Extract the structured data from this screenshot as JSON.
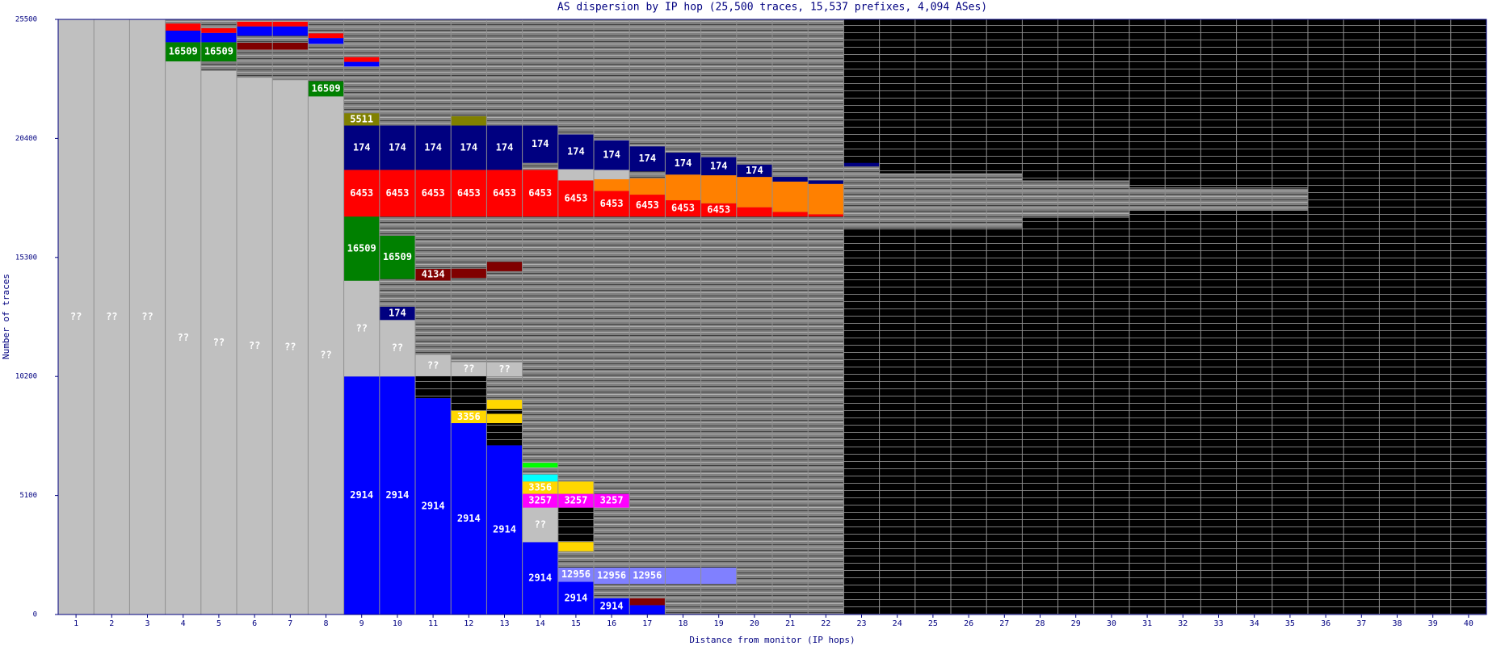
{
  "chart_data": {
    "type": "stacked-bar",
    "title": "AS dispersion by IP hop (25,500 traces, 15,537 prefixes, 4,094 ASes)",
    "x_label": "Distance from monitor (IP hops)",
    "y_label": "Number of traces",
    "ylim": [
      0,
      25500
    ],
    "yticks": [
      0,
      5100,
      10200,
      15300,
      20400,
      25500
    ],
    "categories": [
      "1",
      "2",
      "3",
      "4",
      "5",
      "6",
      "7",
      "8",
      "9",
      "10",
      "11",
      "12",
      "13",
      "14",
      "15",
      "16",
      "17",
      "18",
      "19",
      "20",
      "21",
      "22",
      "23",
      "24",
      "25",
      "26",
      "27",
      "28",
      "29",
      "30",
      "31",
      "32",
      "33",
      "34",
      "35",
      "36",
      "37",
      "38",
      "39",
      "40"
    ],
    "stacks": [
      [
        {
          "label": "??",
          "color": "#c0c0c0",
          "value": 25500
        }
      ],
      [
        {
          "label": "??",
          "color": "#c0c0c0",
          "value": 25500
        }
      ],
      [
        {
          "label": "??",
          "color": "#c0c0c0",
          "value": 25500
        }
      ],
      [
        {
          "label": "??",
          "color": "#c0c0c0",
          "value": 23700
        },
        {
          "label": "16509",
          "color": "#008000",
          "value": 820
        },
        {
          "color": "#0000ff",
          "value": 500
        },
        {
          "color": "#ff0000",
          "value": 300
        }
      ],
      [
        {
          "label": "??",
          "color": "#c0c0c0",
          "value": 23300
        },
        {
          "color": "#808080",
          "value": 400
        },
        {
          "label": "16509",
          "color": "#008000",
          "value": 820
        },
        {
          "color": "#0000ff",
          "value": 400
        },
        {
          "color": "#ff0000",
          "value": 200
        }
      ],
      [
        {
          "label": "??",
          "color": "#c0c0c0",
          "value": 23000
        },
        {
          "color": "#808080",
          "value": 1200
        },
        {
          "color": "#800000",
          "value": 300
        },
        {
          "color": "#808080",
          "value": 300
        },
        {
          "color": "#0000ff",
          "value": 400
        },
        {
          "color": "#ff0000",
          "value": 200
        }
      ],
      [
        {
          "label": "??",
          "color": "#c0c0c0",
          "value": 22900
        },
        {
          "color": "#808080",
          "value": 1300
        },
        {
          "color": "#800000",
          "value": 300
        },
        {
          "color": "#808080",
          "value": 300
        },
        {
          "color": "#0000ff",
          "value": 400
        },
        {
          "color": "#ff0000",
          "value": 200
        }
      ],
      [
        {
          "label": "??",
          "color": "#c0c0c0",
          "value": 22200
        },
        {
          "label": "16509",
          "color": "#008000",
          "value": 650
        },
        {
          "color": "#808080",
          "value": 1600
        },
        {
          "color": "#0000ff",
          "value": 250
        },
        {
          "color": "#ff0000",
          "value": 200
        }
      ],
      [
        {
          "label": "2914",
          "color": "#0000ff",
          "value": 10200
        },
        {
          "label": "??",
          "color": "#c0c0c0",
          "value": 4100
        },
        {
          "label": "16509",
          "color": "#008000",
          "value": 2750
        },
        {
          "label": "6453",
          "color": "#ff0000",
          "value": 2000
        },
        {
          "label": "174",
          "color": "#000080",
          "value": 1900
        },
        {
          "label": "5511",
          "color": "#808000",
          "value": 530
        },
        {
          "color": "#808080",
          "value": 2000
        },
        {
          "color": "#0000ff",
          "value": 200
        },
        {
          "color": "#ff0000",
          "value": 200
        }
      ],
      [
        {
          "label": "2914",
          "color": "#0000ff",
          "value": 10200
        },
        {
          "label": "??",
          "color": "#c0c0c0",
          "value": 2420
        },
        {
          "label": "174",
          "color": "#000080",
          "value": 570
        },
        {
          "color": "#808080",
          "value": 1190
        },
        {
          "label": "16509",
          "color": "#008000",
          "value": 1850
        },
        {
          "color": "#808080",
          "value": 820
        },
        {
          "label": "6453",
          "color": "#ff0000",
          "value": 2000
        },
        {
          "label": "174",
          "color": "#000080",
          "value": 1900
        },
        {
          "color": "#808080",
          "value": 3000
        }
      ],
      [
        {
          "label": "2914",
          "color": "#0000ff",
          "value": 9270
        },
        {
          "color": "#000000",
          "value": 940
        },
        {
          "label": "??",
          "color": "#c0c0c0",
          "value": 900
        },
        {
          "color": "#808080",
          "value": 3200
        },
        {
          "label": "4134",
          "color": "#800000",
          "value": 500
        },
        {
          "color": "#808080",
          "value": 2240
        },
        {
          "label": "6453",
          "color": "#ff0000",
          "value": 2000
        },
        {
          "label": "174",
          "color": "#000080",
          "value": 1900
        },
        {
          "color": "#808080",
          "value": 3000
        }
      ],
      [
        {
          "label": "2914",
          "color": "#0000ff",
          "value": 8200
        },
        {
          "label": "3356",
          "color": "#ffd700",
          "value": 530
        },
        {
          "color": "#000000",
          "value": 1480
        },
        {
          "label": "??",
          "color": "#c0c0c0",
          "value": 610
        },
        {
          "color": "#808080",
          "value": 3600
        },
        {
          "color": "#800000",
          "value": 400
        },
        {
          "color": "#808080",
          "value": 2230
        },
        {
          "label": "6453",
          "color": "#ff0000",
          "value": 2000
        },
        {
          "label": "174",
          "color": "#000080",
          "value": 1900
        },
        {
          "color": "#808000",
          "value": 400
        },
        {
          "color": "#808080",
          "value": 2600
        }
      ],
      [
        {
          "label": "2914",
          "color": "#0000ff",
          "value": 7250
        },
        {
          "color": "#000000",
          "value": 950
        },
        {
          "color": "#ffd700",
          "value": 400
        },
        {
          "color": "#000000",
          "value": 200
        },
        {
          "color": "#ffd700",
          "value": 400
        },
        {
          "color": "#808080",
          "value": 1000
        },
        {
          "label": "??",
          "color": "#c0c0c0",
          "value": 610
        },
        {
          "color": "#808080",
          "value": 3900
        },
        {
          "color": "#800000",
          "value": 400
        },
        {
          "color": "#808080",
          "value": 1940
        },
        {
          "label": "6453",
          "color": "#ff0000",
          "value": 2000
        },
        {
          "label": "174",
          "color": "#000080",
          "value": 1900
        },
        {
          "color": "#808080",
          "value": 2400
        }
      ],
      [
        {
          "label": "2914",
          "color": "#0000ff",
          "value": 3100
        },
        {
          "label": "??",
          "color": "#c0c0c0",
          "value": 1480
        },
        {
          "label": "3257",
          "color": "#ff00ff",
          "value": 590
        },
        {
          "label": "3356",
          "color": "#ffd700",
          "value": 530
        },
        {
          "color": "#00ffff",
          "value": 300
        },
        {
          "color": "#808080",
          "value": 300
        },
        {
          "color": "#00ff00",
          "value": 200
        },
        {
          "color": "#808080",
          "value": 10550
        },
        {
          "label": "6453",
          "color": "#ff0000",
          "value": 2000
        },
        {
          "color": "#808080",
          "value": 300
        },
        {
          "label": "174",
          "color": "#000080",
          "value": 1600
        },
        {
          "color": "#808080",
          "value": 2000
        }
      ],
      [
        {
          "label": "2914",
          "color": "#0000ff",
          "value": 1400
        },
        {
          "label": "12956",
          "color": "#8080ff",
          "value": 610
        },
        {
          "color": "#808080",
          "value": 700
        },
        {
          "color": "#ffd700",
          "value": 400
        },
        {
          "color": "#000000",
          "value": 1470
        },
        {
          "label": "3257",
          "color": "#ff00ff",
          "value": 590
        },
        {
          "color": "#ffd700",
          "value": 530
        },
        {
          "color": "#808080",
          "value": 11350
        },
        {
          "label": "6453",
          "color": "#ff0000",
          "value": 1550
        },
        {
          "color": "#c0c0c0",
          "value": 480
        },
        {
          "label": "174",
          "color": "#000080",
          "value": 1490
        },
        {
          "color": "#808080",
          "value": 2000
        }
      ],
      [
        {
          "label": "2914",
          "color": "#0000ff",
          "value": 700
        },
        {
          "color": "#808080",
          "value": 610
        },
        {
          "label": "12956",
          "color": "#8080ff",
          "value": 700
        },
        {
          "color": "#808080",
          "value": 2570
        },
        {
          "label": "3257",
          "color": "#ff00ff",
          "value": 590
        },
        {
          "color": "#808080",
          "value": 11880
        },
        {
          "label": "6453",
          "color": "#ff0000",
          "value": 1100
        },
        {
          "color": "#ff8000",
          "value": 500
        },
        {
          "color": "#c0c0c0",
          "value": 400
        },
        {
          "label": "174",
          "color": "#000080",
          "value": 1270
        },
        {
          "color": "#808080",
          "value": 2000
        }
      ],
      [
        {
          "color": "#0000ff",
          "value": 400
        },
        {
          "color": "#800000",
          "value": 300
        },
        {
          "color": "#808080",
          "value": 610
        },
        {
          "label": "12956",
          "color": "#8080ff",
          "value": 700
        },
        {
          "color": "#808080",
          "value": 15040
        },
        {
          "label": "6453",
          "color": "#ff0000",
          "value": 940
        },
        {
          "color": "#ff8000",
          "value": 700
        },
        {
          "color": "#808080",
          "value": 300
        },
        {
          "label": "174",
          "color": "#000080",
          "value": 1070
        },
        {
          "color": "#808080",
          "value": 2000
        }
      ],
      [
        {
          "color": "#808080",
          "value": 1310
        },
        {
          "color": "#8080ff",
          "value": 700
        },
        {
          "color": "#808080",
          "value": 15040
        },
        {
          "label": "6453",
          "color": "#ff0000",
          "value": 700
        },
        {
          "color": "#ff8000",
          "value": 1100
        },
        {
          "label": "174",
          "color": "#000080",
          "value": 940
        },
        {
          "color": "#808080",
          "value": 2000
        }
      ],
      [
        {
          "color": "#808080",
          "value": 1310
        },
        {
          "color": "#8080ff",
          "value": 700
        },
        {
          "color": "#808080",
          "value": 15040
        },
        {
          "label": "6453",
          "color": "#ff0000",
          "value": 570
        },
        {
          "color": "#ff8000",
          "value": 1200
        },
        {
          "label": "174",
          "color": "#000080",
          "value": 780
        },
        {
          "color": "#808080",
          "value": 1800
        }
      ],
      [
        {
          "color": "#808080",
          "value": 17050
        },
        {
          "color": "#ff0000",
          "value": 400
        },
        {
          "color": "#ff8000",
          "value": 1300
        },
        {
          "label": "174",
          "color": "#000080",
          "value": 530
        },
        {
          "color": "#808080",
          "value": 1500
        }
      ],
      [
        {
          "color": "#808080",
          "value": 17050
        },
        {
          "color": "#ff0000",
          "value": 200
        },
        {
          "color": "#ff8000",
          "value": 1300
        },
        {
          "color": "#000080",
          "value": 200
        },
        {
          "color": "#808080",
          "value": 1400
        }
      ],
      [
        {
          "color": "#808080",
          "value": 17050
        },
        {
          "color": "#ff0000",
          "value": 100
        },
        {
          "color": "#ff8000",
          "value": 1300
        },
        {
          "color": "#000080",
          "value": 150
        },
        {
          "color": "#808080",
          "value": 1200
        }
      ],
      [
        {
          "color": "#000000",
          "value": 16500
        },
        {
          "color": "#808080",
          "value": 2700
        },
        {
          "color": "#000080",
          "value": 150
        }
      ],
      [
        {
          "color": "#000000",
          "value": 16500
        },
        {
          "color": "#808080",
          "value": 2400
        }
      ],
      [
        {
          "color": "#000000",
          "value": 16500
        },
        {
          "color": "#808080",
          "value": 2400
        }
      ],
      [
        {
          "color": "#000000",
          "value": 16500
        },
        {
          "color": "#808080",
          "value": 2400
        }
      ],
      [
        {
          "color": "#000000",
          "value": 16500
        },
        {
          "color": "#808080",
          "value": 2400
        }
      ],
      [
        {
          "color": "#000000",
          "value": 17000
        },
        {
          "color": "#808080",
          "value": 1600
        }
      ],
      [
        {
          "color": "#000000",
          "value": 17000
        },
        {
          "color": "#808080",
          "value": 1600
        }
      ],
      [
        {
          "color": "#000000",
          "value": 17000
        },
        {
          "color": "#808080",
          "value": 1600
        }
      ],
      [
        {
          "color": "#000000",
          "value": 17300
        },
        {
          "color": "#808080",
          "value": 1000
        }
      ],
      [
        {
          "color": "#000000",
          "value": 17300
        },
        {
          "color": "#808080",
          "value": 1000
        }
      ],
      [
        {
          "color": "#000000",
          "value": 17300
        },
        {
          "color": "#808080",
          "value": 1000
        }
      ],
      [
        {
          "color": "#000000",
          "value": 17300
        },
        {
          "color": "#808080",
          "value": 1000
        }
      ],
      [
        {
          "color": "#000000",
          "value": 17300
        },
        {
          "color": "#808080",
          "value": 1000
        }
      ],
      [
        {
          "color": "#000000",
          "value": 25500
        }
      ],
      [
        {
          "color": "#000000",
          "value": 25500
        }
      ],
      [
        {
          "color": "#000000",
          "value": 25500
        }
      ],
      [
        {
          "color": "#000000",
          "value": 25500
        }
      ],
      [
        {
          "color": "#000000",
          "value": 25500
        }
      ]
    ]
  }
}
